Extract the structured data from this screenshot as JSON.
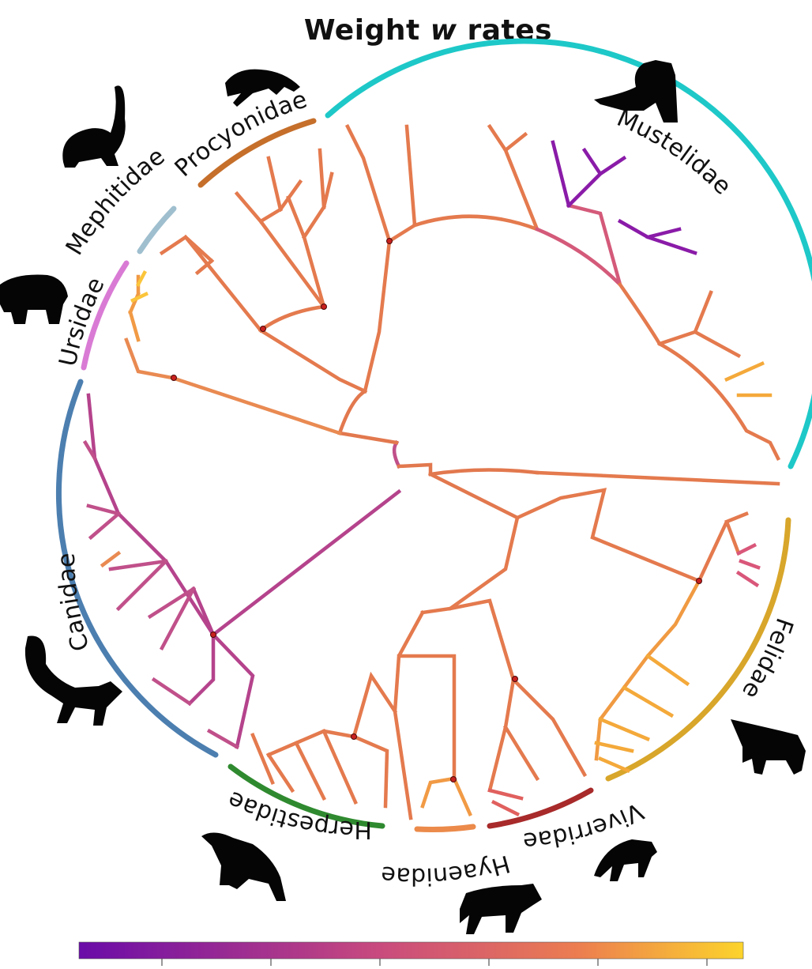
{
  "title": {
    "main": "Weight ",
    "var": "w",
    "suffix": " rates"
  },
  "families": [
    {
      "name": "Mustelidae",
      "color": "#1ec8c8"
    },
    {
      "name": "Procyonidae",
      "color": "#c56f2b"
    },
    {
      "name": "Mephitidae",
      "color": "#9fbfcf"
    },
    {
      "name": "Ursidae",
      "color": "#d97bd5"
    },
    {
      "name": "Canidae",
      "color": "#4c7fb0"
    },
    {
      "name": "Herpestidae",
      "color": "#2f8a2f"
    },
    {
      "name": "Hyaenidae",
      "color": "#eb8a4a"
    },
    {
      "name": "Viverridae",
      "color": "#a82a2a"
    },
    {
      "name": "Felidae",
      "color": "#d8a62a"
    }
  ],
  "colorbar": {
    "low_color": "#6a0ba8",
    "mid_color": "#c84a7e",
    "high_color": "#fcd42c",
    "ticks": 6
  },
  "icons": [
    "skunk-icon",
    "raccoon-icon",
    "mink-icon",
    "bear-icon",
    "fox-icon",
    "mongoose-icon",
    "hyena-icon",
    "civet-icon",
    "lynx-icon"
  ]
}
